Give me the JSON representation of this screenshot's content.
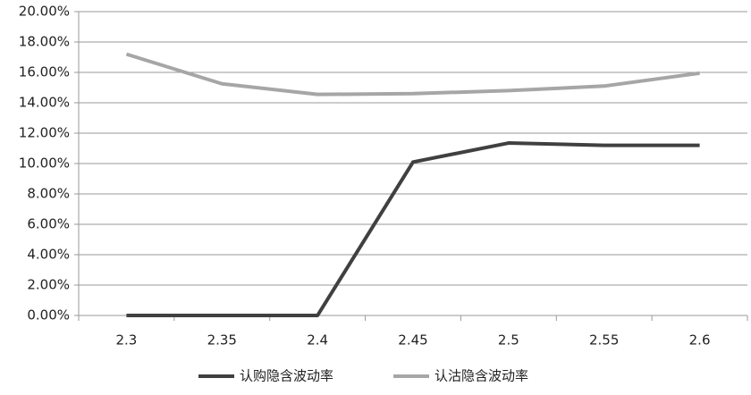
{
  "chart_data": {
    "type": "line",
    "categories": [
      "2.3",
      "2.35",
      "2.4",
      "2.45",
      "2.5",
      "2.55",
      "2.6"
    ],
    "series": [
      {
        "name": "认购隐含波动率",
        "color": "#404040",
        "values": [
          0,
          0,
          0,
          10.1,
          11.35,
          11.2,
          11.2
        ]
      },
      {
        "name": "认沽隐含波动率",
        "color": "#a6a6a6",
        "values": [
          17.2,
          15.25,
          14.55,
          14.6,
          14.8,
          15.1,
          15.95
        ]
      }
    ],
    "ylim": [
      0,
      20
    ],
    "yticks": [
      {
        "value": 0,
        "label": "0.00%"
      },
      {
        "value": 2,
        "label": "2.00%"
      },
      {
        "value": 4,
        "label": "4.00%"
      },
      {
        "value": 6,
        "label": "6.00%"
      },
      {
        "value": 8,
        "label": "8.00%"
      },
      {
        "value": 10,
        "label": "10.00%"
      },
      {
        "value": 12,
        "label": "12.00%"
      },
      {
        "value": 14,
        "label": "14.00%"
      },
      {
        "value": 16,
        "label": "16.00%"
      },
      {
        "value": 18,
        "label": "18.00%"
      },
      {
        "value": 20,
        "label": "20.00%"
      }
    ],
    "grid": true,
    "legend": "bottom"
  }
}
